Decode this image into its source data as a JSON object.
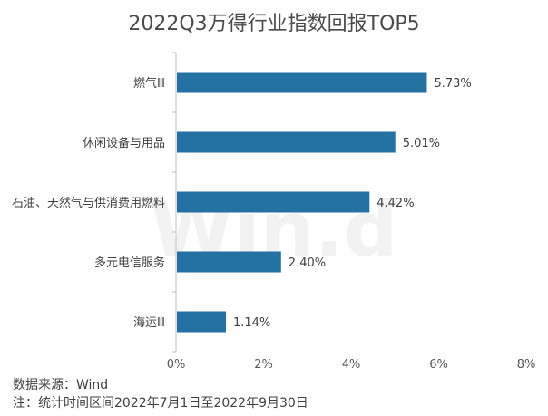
{
  "chart_data": {
    "type": "bar",
    "orientation": "horizontal",
    "title": "2022Q3万得行业指数回报TOP5",
    "categories": [
      "燃气Ⅲ",
      "休闲设备与用品",
      "石油、天然气与供消费用燃料",
      "多元电信服务",
      "海运Ⅲ"
    ],
    "values": [
      5.73,
      5.01,
      4.42,
      2.4,
      1.14
    ],
    "value_labels": [
      "5.73%",
      "5.01%",
      "4.42%",
      "2.40%",
      "1.14%"
    ],
    "xlim": [
      0,
      8
    ],
    "xticks": [
      0,
      2,
      4,
      6,
      8
    ],
    "xtick_labels": [
      "0%",
      "2%",
      "4%",
      "6%",
      "8%"
    ],
    "grid": false,
    "bar_color": "#2471a3"
  },
  "watermark": "Win.d",
  "footer": {
    "source": "数据来源：Wind",
    "note": "注：统计时间区间2022年7月1日至2022年9月30日"
  }
}
